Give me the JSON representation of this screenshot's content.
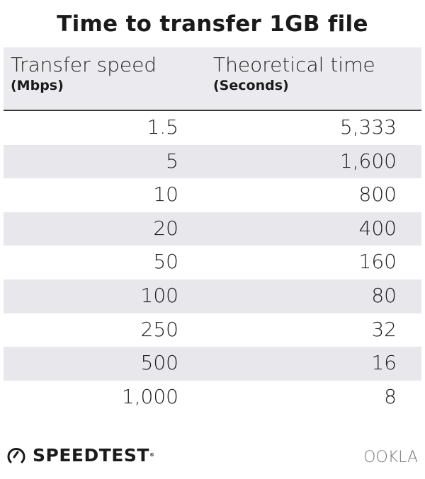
{
  "title": "Time to transfer 1GB file",
  "chart_data": {
    "type": "table",
    "title": "Time to transfer 1GB file",
    "columns": [
      {
        "label": "Transfer speed",
        "unit": "(Mbps)"
      },
      {
        "label": "Theoretical time",
        "unit": "(Seconds)"
      }
    ],
    "rows": [
      [
        "1.5",
        "5,333"
      ],
      [
        "5",
        "1,600"
      ],
      [
        "10",
        "800"
      ],
      [
        "20",
        "400"
      ],
      [
        "50",
        "160"
      ],
      [
        "100",
        "80"
      ],
      [
        "250",
        "32"
      ],
      [
        "500",
        "16"
      ],
      [
        "1,000",
        "8"
      ]
    ]
  },
  "footer": {
    "left_logo": "SPEEDTEST",
    "right_logo": "OOKLA"
  },
  "colors": {
    "header_bg": "#ebebef",
    "stripe": "#e8e8ec",
    "text": "#222222"
  }
}
